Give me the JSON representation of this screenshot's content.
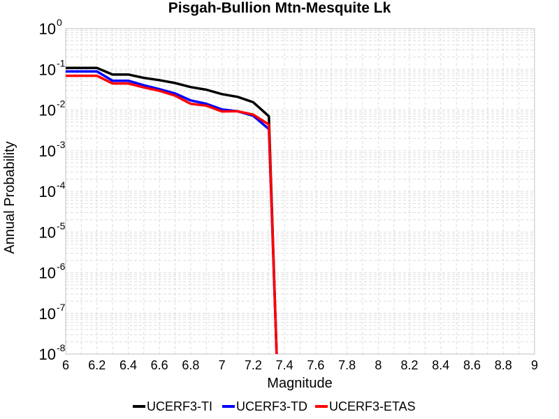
{
  "chart_data": {
    "type": "line",
    "title": "Pisgah-Bullion Mtn-Mesquite Lk",
    "xlabel": "Magnitude",
    "ylabel": "Annual Probability",
    "xlim": [
      6,
      9
    ],
    "ylim": [
      1e-08,
      1
    ],
    "yscale": "log",
    "grid": true,
    "legend_position": "bottom",
    "x_ticks": [
      "6",
      "6.2",
      "6.4",
      "6.6",
      "6.8",
      "7",
      "7.2",
      "7.4",
      "7.6",
      "7.8",
      "8",
      "8.2",
      "8.4",
      "8.6",
      "8.8",
      "9"
    ],
    "y_ticks": [
      {
        "base": "10",
        "exp": "0"
      },
      {
        "base": "10",
        "exp": "-1"
      },
      {
        "base": "10",
        "exp": "-2"
      },
      {
        "base": "10",
        "exp": "-3"
      },
      {
        "base": "10",
        "exp": "-4"
      },
      {
        "base": "10",
        "exp": "-5"
      },
      {
        "base": "10",
        "exp": "-6"
      },
      {
        "base": "10",
        "exp": "-7"
      },
      {
        "base": "10",
        "exp": "-8"
      }
    ],
    "series": [
      {
        "name": "UCERF3-TI",
        "color": "#000000",
        "x": [
          6.0,
          6.1,
          6.2,
          6.3,
          6.4,
          6.5,
          6.6,
          6.7,
          6.8,
          6.9,
          7.0,
          7.1,
          7.2,
          7.3,
          7.35
        ],
        "y": [
          0.108,
          0.108,
          0.108,
          0.0745,
          0.0745,
          0.0615,
          0.054,
          0.046,
          0.0365,
          0.0315,
          0.0245,
          0.021,
          0.0155,
          0.007,
          1e-08
        ]
      },
      {
        "name": "UCERF3-TD",
        "color": "#0000ff",
        "x": [
          6.0,
          6.1,
          6.2,
          6.3,
          6.4,
          6.5,
          6.6,
          6.7,
          6.8,
          6.9,
          7.0,
          7.1,
          7.2,
          7.3,
          7.35
        ],
        "y": [
          0.089,
          0.089,
          0.089,
          0.0525,
          0.0525,
          0.0405,
          0.0325,
          0.0255,
          0.0172,
          0.0142,
          0.0103,
          0.0093,
          0.0072,
          0.0034,
          1e-08
        ]
      },
      {
        "name": "UCERF3-ETAS",
        "color": "#ff0000",
        "x": [
          6.0,
          6.1,
          6.2,
          6.3,
          6.4,
          6.5,
          6.6,
          6.7,
          6.8,
          6.9,
          7.0,
          7.1,
          7.2,
          7.3,
          7.35
        ],
        "y": [
          0.0695,
          0.0695,
          0.0695,
          0.045,
          0.045,
          0.0358,
          0.0295,
          0.0225,
          0.0142,
          0.0128,
          0.0092,
          0.0093,
          0.0077,
          0.0044,
          1e-08
        ]
      }
    ]
  }
}
